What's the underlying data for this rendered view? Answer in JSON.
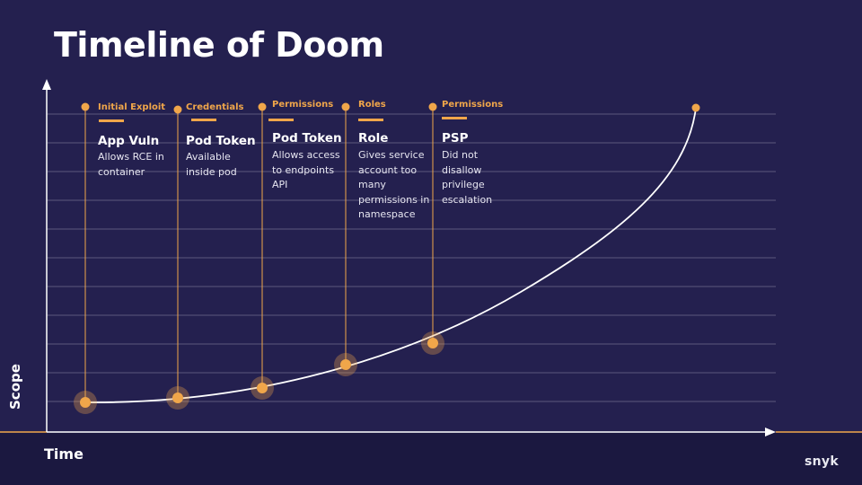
{
  "title": "Timeline of Doom",
  "axes": {
    "y_label": "Scope",
    "x_label": "Time"
  },
  "brand": "snyk",
  "colors": {
    "background": "#24204f",
    "accent": "#f0a64a",
    "text": "#ffffff",
    "gridline": "#6e6b8c"
  },
  "stages": [
    {
      "tag": "Initial Exploit",
      "name": "App Vuln",
      "description": [
        "Allows RCE in",
        "container"
      ]
    },
    {
      "tag": "Credentials",
      "name": "Pod Token",
      "description": [
        "Available",
        "inside pod"
      ]
    },
    {
      "tag": "Permissions",
      "name": "Pod Token",
      "description": [
        "Allows access",
        "to endpoints",
        "API"
      ]
    },
    {
      "tag": "Roles",
      "name": "Role",
      "description": [
        "Gives service",
        "account too",
        "many",
        "permissions in",
        "namespace"
      ]
    },
    {
      "tag": "Permissions",
      "name": "PSP",
      "description": [
        "Did not",
        "disallow",
        "privilege",
        "escalation"
      ]
    }
  ]
}
